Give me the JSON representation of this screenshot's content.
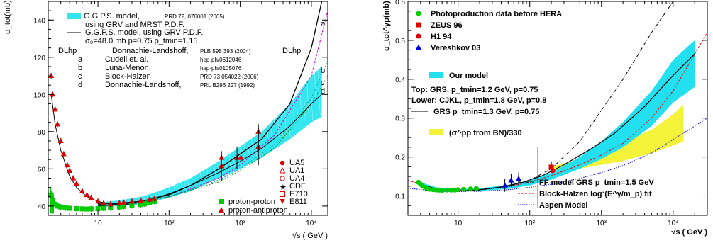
{
  "chart_data": [
    {
      "type": "scatter",
      "xscale": "log",
      "xlim": [
        2,
        17000
      ],
      "ylim": [
        35,
        150
      ],
      "ylabel": "σ_tot(mb)",
      "xlabel": "√s ( GeV )",
      "xticks": [
        {
          "v": 10,
          "label": "10"
        },
        {
          "v": 100,
          "label": "10²"
        },
        {
          "v": 1000,
          "label": "10³"
        },
        {
          "v": 10000,
          "label": "10⁴"
        }
      ],
      "yticks": [
        40,
        60,
        80,
        100,
        120,
        140
      ],
      "legend_top": [
        {
          "text": "G.G.P.S. model,",
          "ref": "PRD 72, 076001 (2005)",
          "swatch": "band"
        },
        {
          "text": "using GRV and MRST P.D.F.",
          "ref": "",
          "swatch": "none"
        },
        {
          "text": "G.G.P.S. model, using GRV P.D.F.",
          "ref": "",
          "swatch": "line"
        },
        {
          "text": "σ₀=48.0 mb p=0.75 p_tmin=1.15",
          "ref": "",
          "swatch": "none"
        }
      ],
      "legend_models": [
        {
          "key": "DLhp",
          "text": "Donnachie-Landshoff,",
          "ref": "PLB 595 393 (2004)"
        },
        {
          "key": "a",
          "text": "Cudell et. al.",
          "ref": "hep-ph/0612046"
        },
        {
          "key": "b",
          "text": "Luna-Menon,",
          "ref": "hep-ph/0105076"
        },
        {
          "key": "c",
          "text": "Block-Halzen",
          "ref": "PRD 73 054022 (2006)"
        },
        {
          "key": "d",
          "text": "Donnachie-Landshoff,",
          "ref": "PRL B296 227 (1992)"
        }
      ],
      "curve_labels": [
        "DLhp",
        "a",
        "b",
        "c",
        "d"
      ],
      "experiments": [
        "UA5",
        "UA1",
        "UA4",
        "CDF",
        "E710",
        "E811"
      ],
      "species": [
        "proton-proton",
        "proton-antiproton"
      ],
      "series": [
        {
          "name": "proton-proton",
          "color": "#00cc00",
          "x": [
            2.2,
            2.3,
            2.5,
            2.7,
            3,
            3.5,
            4,
            5,
            6,
            7,
            8,
            10,
            12,
            15,
            20,
            23,
            30,
            40,
            45,
            53,
            62
          ],
          "y": [
            46,
            43,
            41,
            40,
            39.5,
            39,
            38.8,
            38.6,
            38.5,
            38.4,
            38.5,
            38.6,
            38.8,
            39,
            39.5,
            39.8,
            40.2,
            40.8,
            41.2,
            42,
            42.5
          ]
        },
        {
          "name": "proton-antiproton",
          "color": "#dd0000",
          "x": [
            2.2,
            2.3,
            2.5,
            2.7,
            3,
            3.3,
            3.7,
            4,
            4.5,
            5,
            6,
            7,
            8,
            10,
            12,
            15,
            20,
            23,
            30,
            40,
            53,
            62,
            546,
            546,
            900,
            1020,
            1800,
            1800
          ],
          "y": [
            110,
            100,
            92,
            84,
            75,
            68,
            62,
            59,
            55,
            52,
            48,
            46,
            44.5,
            42.5,
            41.5,
            41,
            41.5,
            42,
            42.5,
            43,
            43.5,
            44,
            61.5,
            66,
            66,
            66,
            72,
            80
          ]
        }
      ],
      "curves": [
        {
          "name": "G.G.P.S. model, using GRV P.D.F.",
          "x": [
            10,
            20,
            40,
            60,
            100,
            200,
            500,
            1000,
            2000,
            5000,
            10000,
            14000
          ],
          "y": [
            41,
            41.5,
            42.5,
            44,
            46.5,
            51,
            60,
            68,
            76,
            95,
            125,
            150
          ]
        },
        {
          "name": "d",
          "x": [
            10,
            20,
            40,
            60,
            100,
            200,
            500,
            1000,
            2000,
            5000,
            10000,
            14000
          ],
          "y": [
            40,
            40.8,
            42.5,
            44,
            46,
            51,
            58,
            64,
            71,
            83,
            95,
            100
          ]
        }
      ],
      "band": {
        "name": "G.G.P.S. model, using GRV and MRST P.D.F.",
        "x": [
          10,
          20,
          40,
          60,
          100,
          200,
          500,
          1000,
          2000,
          5000,
          10000,
          14000
        ],
        "ylow": [
          39.5,
          40,
          41,
          42.5,
          44.5,
          48,
          55,
          60,
          66,
          76,
          85,
          88
        ],
        "yhigh": [
          42,
          43,
          45,
          47,
          50,
          55,
          64,
          72,
          80,
          95,
          110,
          115
        ]
      }
    },
    {
      "type": "scatter",
      "xscale": "log",
      "xlim": [
        2,
        30000
      ],
      "ylim": [
        0.05,
        0.6
      ],
      "ylabel": "σ_tot^γp(mb)",
      "xlabel": "√s ( GeV )",
      "xticks": [
        {
          "v": 10,
          "label": "10"
        },
        {
          "v": 100,
          "label": "10²"
        },
        {
          "v": 1000,
          "label": "10³"
        },
        {
          "v": 10000,
          "label": "10⁴"
        }
      ],
      "yticks": [
        0.1,
        0.2,
        0.3,
        0.4,
        0.5,
        0.6
      ],
      "legend_top": [
        {
          "text": "Photoproduction data before HERA",
          "color": "#00cc00",
          "marker": "circle"
        },
        {
          "text": "ZEUS 96",
          "color": "#dd0000",
          "marker": "square"
        },
        {
          "text": "H1 94",
          "color": "#dd0000",
          "marker": "circle"
        },
        {
          "text": "Vereshkov 03",
          "color": "#0000dd",
          "marker": "triangle"
        }
      ],
      "legend_model": [
        {
          "text": "Our model"
        },
        {
          "text": "Top: GRS, p_tmin=1.2 GeV, p=0.75"
        },
        {
          "text": "Lower: CJKL, p_tmin=1.8 GeV, p=0.8"
        },
        {
          "text": "GRS p_tmin=1.3 GeV, p=0.75"
        },
        {
          "text": "(σ^pp from BN)/330"
        }
      ],
      "legend_bottom": [
        {
          "text": "FF model GRS p_tmin=1.5 GeV",
          "style": "dashdot",
          "color": "#000000"
        },
        {
          "text": "Block-Halzen log²(E^γ/m_p) fit",
          "style": "dashed",
          "color": "#dd0000"
        },
        {
          "text": "Aspen Model",
          "style": "dotted",
          "color": "#0000dd"
        }
      ],
      "series": [
        {
          "name": "Photoproduction data before HERA",
          "color": "#00cc00",
          "x": [
            2.8,
            3,
            3.2,
            3.5,
            3.8,
            4,
            4.5,
            5,
            5.5,
            6,
            7,
            8,
            9,
            10,
            12,
            15,
            18
          ],
          "y": [
            0.135,
            0.13,
            0.125,
            0.122,
            0.118,
            0.117,
            0.116,
            0.115,
            0.115,
            0.114,
            0.115,
            0.115,
            0.115,
            0.116,
            0.117,
            0.118,
            0.119
          ]
        },
        {
          "name": "ZEUS 96",
          "color": "#dd0000",
          "x": [
            200
          ],
          "y": [
            0.174
          ]
        },
        {
          "name": "H1 94",
          "color": "#dd0000",
          "x": [
            200
          ],
          "y": [
            0.165
          ]
        },
        {
          "name": "Vereshkov 03",
          "color": "#0000dd",
          "x": [
            45,
            55,
            70
          ],
          "y": [
            0.127,
            0.14,
            0.144
          ]
        }
      ],
      "curves": [
        {
          "name": "GRS p_tmin=1.3 GeV, p=0.75",
          "x": [
            3,
            5,
            8,
            12,
            20,
            40,
            80,
            150,
            300,
            700,
            1500,
            4000,
            10000,
            20000
          ],
          "y": [
            0.13,
            0.118,
            0.113,
            0.113,
            0.116,
            0.123,
            0.135,
            0.152,
            0.18,
            0.22,
            0.26,
            0.33,
            0.41,
            0.465
          ]
        },
        {
          "name": "FF model GRS p_tmin=1.5 GeV",
          "x": [
            3,
            5,
            10,
            20,
            50,
            100,
            200,
            500,
            1000,
            2000,
            5000,
            10000
          ],
          "y": [
            0.125,
            0.115,
            0.113,
            0.115,
            0.125,
            0.14,
            0.17,
            0.24,
            0.32,
            0.4,
            0.52,
            0.6
          ]
        },
        {
          "name": "Block-Halzen log²(E^γ/m_p) fit",
          "x": [
            2,
            5,
            10,
            20,
            50,
            100,
            200,
            500,
            1000,
            2000,
            5000,
            10000,
            30000
          ],
          "y": [
            0.14,
            0.118,
            0.115,
            0.116,
            0.124,
            0.135,
            0.152,
            0.18,
            0.205,
            0.235,
            0.3,
            0.37,
            0.52
          ]
        },
        {
          "name": "Aspen Model",
          "x": [
            2,
            5,
            10,
            20,
            50,
            100,
            200,
            500,
            1000,
            2000,
            5000,
            10000,
            30000
          ],
          "y": [
            0.12,
            0.112,
            0.111,
            0.112,
            0.116,
            0.122,
            0.13,
            0.145,
            0.16,
            0.178,
            0.21,
            0.245,
            0.3
          ]
        }
      ],
      "band": {
        "name": "Our model",
        "x": [
          3,
          5,
          10,
          20,
          50,
          100,
          200,
          500,
          1000,
          2000,
          5000,
          10000,
          20000
        ],
        "ylow": [
          0.127,
          0.117,
          0.112,
          0.113,
          0.118,
          0.127,
          0.142,
          0.17,
          0.195,
          0.225,
          0.28,
          0.34,
          0.38
        ],
        "yhigh": [
          0.135,
          0.122,
          0.117,
          0.12,
          0.128,
          0.14,
          0.16,
          0.2,
          0.24,
          0.29,
          0.37,
          0.45,
          0.5
        ]
      },
      "band2": {
        "name": "(σ^pp from BN)/330",
        "x": [
          200,
          500,
          1000,
          2000,
          5000,
          10000,
          14000
        ],
        "ylow": [
          0.16,
          0.17,
          0.18,
          0.19,
          0.21,
          0.23,
          0.24
        ],
        "yhigh": [
          0.175,
          0.195,
          0.215,
          0.24,
          0.27,
          0.31,
          0.335
        ]
      }
    }
  ]
}
